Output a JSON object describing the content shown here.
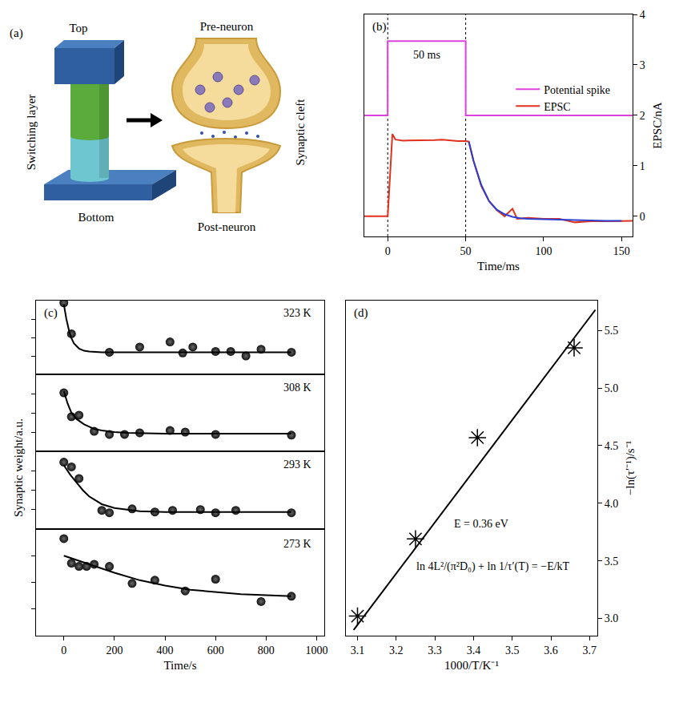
{
  "chart_data": [
    {
      "type": "diagram",
      "panel": "(a)",
      "labels": {
        "top": "Top",
        "switching_layer": "Switching layer",
        "bottom": "Bottom",
        "pre_neuron": "Pre-neuron",
        "synaptic_cleft": "Synaptic cleft",
        "post_neuron": "Post-neuron"
      }
    },
    {
      "type": "line",
      "panel": "(b)",
      "x_label": "Time/ms",
      "y_label": "EPSC/nA",
      "xlim": [
        -15,
        157
      ],
      "xticks": [
        0,
        50,
        100,
        150
      ],
      "ylim": [
        -0.4,
        4
      ],
      "yticks": [
        0,
        1,
        2,
        3,
        4
      ],
      "legend": "upper right",
      "annotations": [
        {
          "text": "50 ms",
          "x": 25,
          "y": 3.2
        }
      ],
      "series": [
        {
          "name": "Potential spike",
          "color": "#e040e0",
          "x": [
            -15,
            0,
            0,
            50,
            50,
            157
          ],
          "values": [
            2,
            2,
            3.47,
            3.47,
            2,
            2
          ]
        },
        {
          "name": "EPSC",
          "color": "#e0301e",
          "x": [
            -15,
            0,
            3,
            5,
            10,
            20,
            30,
            35,
            40,
            45,
            50,
            52,
            55,
            60,
            65,
            70,
            75,
            80,
            83,
            90,
            100,
            110,
            120,
            130,
            140,
            150,
            157
          ],
          "values": [
            0,
            0,
            1.63,
            1.52,
            1.5,
            1.5,
            1.51,
            1.52,
            1.5,
            1.49,
            1.49,
            1.48,
            1.1,
            0.6,
            0.3,
            0.12,
            0.0,
            0.15,
            -0.05,
            -0.03,
            -0.05,
            -0.05,
            -0.12,
            -0.1,
            -0.1,
            -0.1,
            -0.09
          ]
        },
        {
          "color": "#2b3fd0",
          "x": [
            52,
            55,
            60,
            65,
            70,
            75,
            80,
            85,
            90,
            100,
            110,
            120,
            130,
            140,
            150
          ],
          "values": [
            1.48,
            1.1,
            0.62,
            0.3,
            0.13,
            0.04,
            -0.01,
            -0.04,
            -0.05,
            -0.06,
            -0.07,
            -0.08,
            -0.09,
            -0.09,
            -0.09
          ]
        }
      ]
    },
    {
      "type": "scatter",
      "panel": "(c)",
      "x_label": "Time/s",
      "y_label": "Synaptic weight/a.u.",
      "xlim": [
        -110,
        1030
      ],
      "xticks": [
        0,
        200,
        400,
        600,
        800,
        1000
      ],
      "tick_labels": "x",
      "panels": [
        {
          "label": "323 K",
          "ylim": [
            0,
            1
          ],
          "yticks": [
            0.25,
            0.5,
            0.75
          ],
          "series": [
            {
              "type": "scatter",
              "marker": "circle",
              "color": "#111111",
              "x": [
                0,
                30,
                180,
                300,
                420,
                470,
                510,
                600,
                660,
                720,
                780,
                900
              ],
              "values": [
                0.97,
                0.55,
                0.3,
                0.37,
                0.44,
                0.29,
                0.37,
                0.31,
                0.31,
                0.25,
                0.34,
                0.3
              ]
            },
            {
              "type": "line",
              "color": "#000000",
              "x": [
                0,
                10,
                20,
                30,
                40,
                60,
                80,
                100,
                150,
                200,
                400,
                600,
                900
              ],
              "values": [
                0.95,
                0.75,
                0.6,
                0.49,
                0.42,
                0.35,
                0.32,
                0.31,
                0.3,
                0.3,
                0.3,
                0.3,
                0.3
              ]
            }
          ]
        },
        {
          "label": "308 K",
          "ylim": [
            0,
            1
          ],
          "yticks": [
            0.25,
            0.5,
            0.75
          ],
          "series": [
            {
              "type": "scatter",
              "marker": "circle",
              "color": "#111111",
              "x": [
                0,
                30,
                60,
                120,
                180,
                240,
                300,
                420,
                480,
                600,
                900
              ],
              "values": [
                0.76,
                0.45,
                0.47,
                0.26,
                0.22,
                0.22,
                0.24,
                0.27,
                0.25,
                0.22,
                0.21
              ]
            },
            {
              "type": "line",
              "color": "#000000",
              "x": [
                0,
                15,
                30,
                50,
                80,
                120,
                150,
                200,
                250,
                400,
                600,
                900
              ],
              "values": [
                0.78,
                0.62,
                0.5,
                0.42,
                0.35,
                0.29,
                0.27,
                0.25,
                0.24,
                0.23,
                0.23,
                0.23
              ]
            }
          ]
        },
        {
          "label": "293 K",
          "ylim": [
            0,
            1
          ],
          "yticks": [
            0.25,
            0.5,
            0.75
          ],
          "series": [
            {
              "type": "scatter",
              "marker": "circle",
              "color": "#111111",
              "x": [
                0,
                30,
                60,
                150,
                180,
                270,
                360,
                430,
                540,
                600,
                680,
                900
              ],
              "values": [
                0.86,
                0.8,
                0.65,
                0.24,
                0.21,
                0.26,
                0.22,
                0.24,
                0.25,
                0.21,
                0.24,
                0.21
              ]
            },
            {
              "type": "line",
              "color": "#000000",
              "x": [
                0,
                25,
                50,
                75,
                100,
                150,
                200,
                300,
                400,
                600,
                900
              ],
              "values": [
                0.82,
                0.7,
                0.6,
                0.5,
                0.42,
                0.32,
                0.27,
                0.23,
                0.22,
                0.22,
                0.22
              ]
            }
          ]
        },
        {
          "label": "273 K",
          "ylim": [
            0,
            1
          ],
          "yticks": [
            0.25,
            0.5,
            0.75
          ],
          "series": [
            {
              "type": "scatter",
              "marker": "circle",
              "color": "#111111",
              "x": [
                0,
                30,
                60,
                90,
                120,
                180,
                270,
                360,
                480,
                600,
                780,
                900
              ],
              "values": [
                0.91,
                0.68,
                0.65,
                0.65,
                0.67,
                0.65,
                0.49,
                0.52,
                0.42,
                0.53,
                0.32,
                0.37
              ]
            },
            {
              "type": "line",
              "color": "#000000",
              "x": [
                0,
                100,
                200,
                300,
                400,
                500,
                600,
                700,
                800,
                900
              ],
              "values": [
                0.75,
                0.67,
                0.59,
                0.52,
                0.47,
                0.43,
                0.41,
                0.39,
                0.38,
                0.37
              ]
            }
          ]
        }
      ]
    },
    {
      "type": "scatter",
      "panel": "(d)",
      "x_label": "1000/T/K⁻¹",
      "y_label": "−ln(τ′⁻¹)/s⁻¹",
      "xlim": [
        3.07,
        3.72
      ],
      "xticks": [
        3.1,
        3.2,
        3.3,
        3.4,
        3.5,
        3.6,
        3.7
      ],
      "ylim": [
        2.85,
        5.76
      ],
      "yticks": [
        {
          "value": 3,
          "label": "3.0"
        },
        3.5,
        {
          "value": 4,
          "label": "4.0"
        },
        4.5,
        {
          "value": 5,
          "label": "5.0"
        },
        5.5
      ],
      "annotations": [
        {
          "text": "E = 0.36 eV",
          "x": 3.42,
          "y": 3.82
        },
        {
          "text": "ln 4L²/(π²D₀) + ln 1/τ′(T) = −E/kT",
          "x": 3.45,
          "y": 3.45
        }
      ],
      "series": [
        {
          "type": "scatter",
          "marker": "asterisk",
          "color": "#000000",
          "x": [
            3.1,
            3.25,
            3.41,
            3.66
          ],
          "values": [
            3.02,
            3.69,
            4.57,
            5.35
          ]
        },
        {
          "type": "line",
          "color": "#000000",
          "x": [
            3.09,
            3.715
          ],
          "values": [
            2.9,
            5.68
          ]
        }
      ]
    }
  ]
}
